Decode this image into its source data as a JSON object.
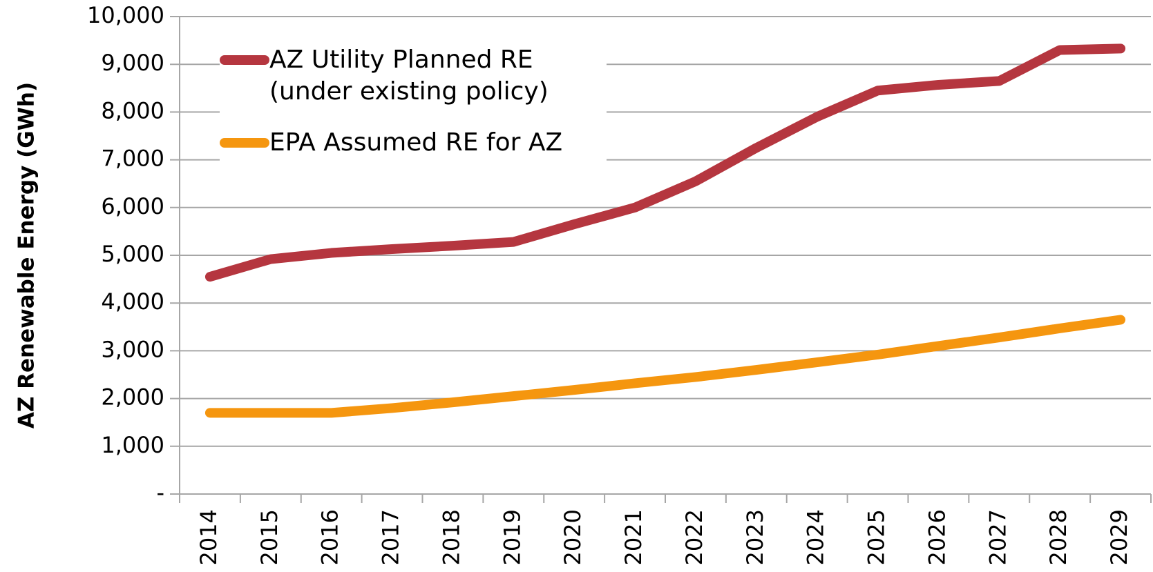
{
  "chart_data": {
    "type": "line",
    "ylabel": "AZ Renewable Energy (GWh)",
    "categories": [
      "2014",
      "2015",
      "2016",
      "2017",
      "2018",
      "2019",
      "2020",
      "2021",
      "2022",
      "2023",
      "2024",
      "2025",
      "2026",
      "2027",
      "2028",
      "2029"
    ],
    "series": [
      {
        "name": "AZ Utility Planned RE (under existing policy)",
        "color": "#b5363f",
        "values": [
          4550,
          4920,
          5050,
          5130,
          5200,
          5280,
          5650,
          6000,
          6550,
          7250,
          7900,
          8450,
          8570,
          8650,
          9300,
          9330
        ]
      },
      {
        "name": "EPA Assumed RE for AZ",
        "color": "#f5960f",
        "values": [
          1700,
          1700,
          1700,
          1800,
          1920,
          2050,
          2180,
          2320,
          2450,
          2600,
          2760,
          2920,
          3100,
          3280,
          3470,
          3650
        ]
      }
    ],
    "ylim": [
      0,
      10000
    ],
    "yticks": [
      {
        "value": 0,
        "label": "-"
      },
      {
        "value": 1000,
        "label": "1,000"
      },
      {
        "value": 2000,
        "label": "2,000"
      },
      {
        "value": 3000,
        "label": "3,000"
      },
      {
        "value": 4000,
        "label": "4,000"
      },
      {
        "value": 5000,
        "label": "5,000"
      },
      {
        "value": 6000,
        "label": "6,000"
      },
      {
        "value": 7000,
        "label": "7,000"
      },
      {
        "value": 8000,
        "label": "8,000"
      },
      {
        "value": 9000,
        "label": "9,000"
      },
      {
        "value": 10000,
        "label": "10,000"
      }
    ],
    "grid": true,
    "legend": "upper left"
  }
}
